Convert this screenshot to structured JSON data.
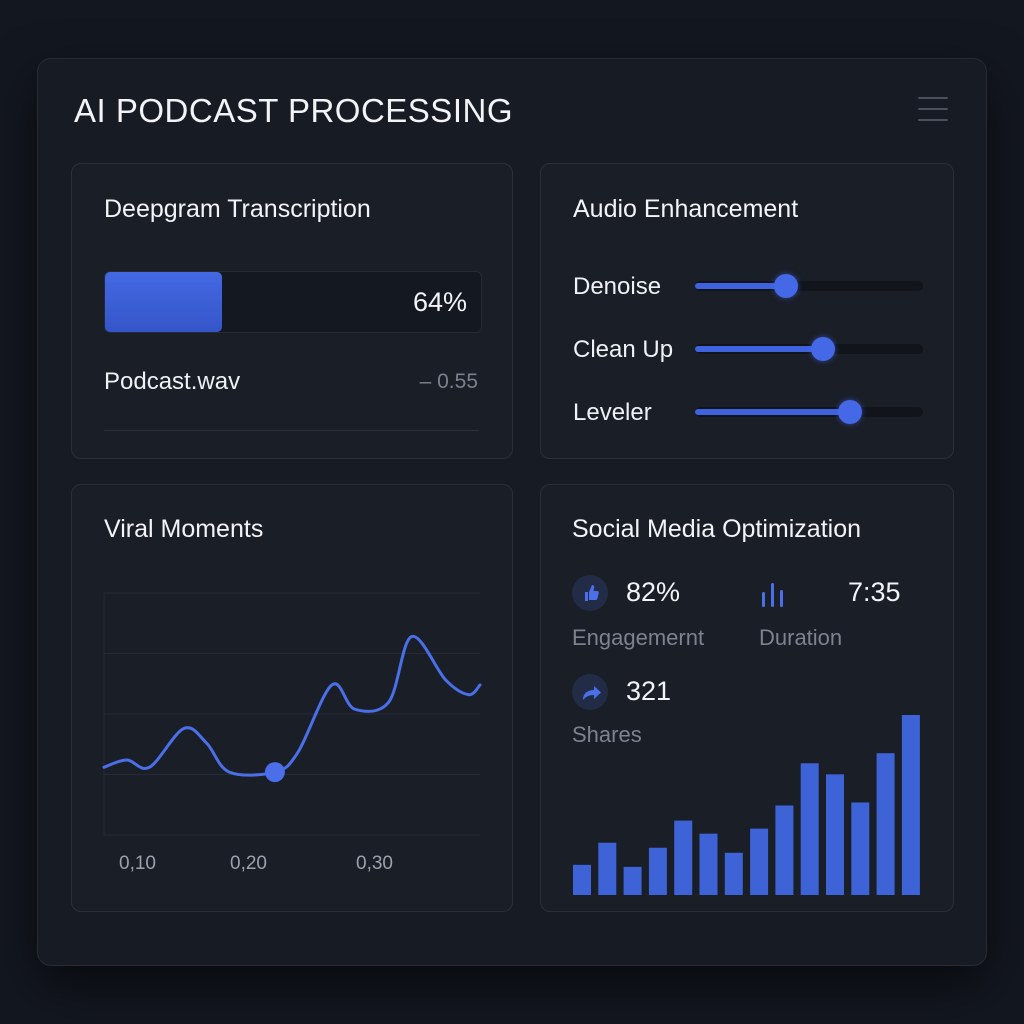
{
  "app": {
    "title": "AI PODCAST PROCESSING",
    "menu_icon": "hamburger-menu-icon"
  },
  "transcription": {
    "title": "Deepgram Transcription",
    "progress": 0.64,
    "progress_label": "64%",
    "file_name": "Podcast.wav",
    "file_value": "– 0.55"
  },
  "enhancement": {
    "title": "Audio Enhancement",
    "sliders": [
      {
        "label": "Denoise",
        "value": 0.4
      },
      {
        "label": "Clean Up",
        "value": 0.56
      },
      {
        "label": "Leveler",
        "value": 0.68
      }
    ]
  },
  "viral": {
    "title": "Viral Moments",
    "x_ticks": [
      "0,10",
      "0,20",
      "0,30"
    ]
  },
  "social": {
    "title": "Social Media Optimization",
    "engagement": {
      "value": "82%",
      "label": "Engagemernt",
      "icon": "thumbs-up-icon"
    },
    "duration": {
      "value": "7:35",
      "label": "Duration",
      "icon": "audio-bars-icon"
    },
    "shares": {
      "value": "321",
      "label": "Shares",
      "icon": "share-arrow-icon"
    }
  },
  "colors": {
    "accent": "#3f63df",
    "background": "#131720",
    "card": "#1a1e27"
  },
  "chart_data": [
    {
      "type": "line",
      "x": [
        0.05,
        0.07,
        0.09,
        0.12,
        0.14,
        0.16,
        0.2,
        0.22,
        0.25,
        0.27,
        0.3,
        0.32,
        0.35,
        0.37,
        0.38
      ],
      "series": [
        {
          "values": [
            0.28,
            0.31,
            0.28,
            0.44,
            0.38,
            0.26,
            0.26,
            0.34,
            0.62,
            0.52,
            0.55,
            0.82,
            0.64,
            0.58,
            0.62
          ]
        }
      ],
      "highlight_x": 0.2,
      "xlim": [
        0.05,
        0.38
      ],
      "ylim": [
        0,
        1
      ],
      "grid": true
    },
    {
      "type": "bar",
      "values": [
        30,
        52,
        28,
        47,
        74,
        61,
        42,
        66,
        89,
        131,
        120,
        92,
        141,
        179
      ]
    }
  ]
}
